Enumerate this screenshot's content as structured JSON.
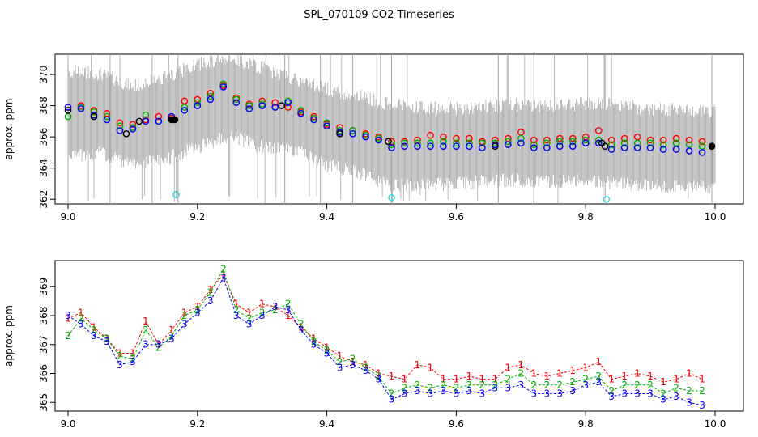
{
  "title": "SPL_070109  CO2 Timeseries",
  "colors": {
    "raw": "#a8a8a8",
    "level1": "#ff0000",
    "level2": "#00b000",
    "level3": "#0000ff",
    "black": "#000000",
    "cyan": "#33d6e0"
  },
  "chart_data": [
    {
      "type": "scatter",
      "xlabel": "",
      "ylabel": "approx. ppm",
      "xlim": [
        9.0,
        10.0
      ],
      "ylim": [
        361.7,
        371.3
      ],
      "x_ticks": [
        "9.0",
        "9.2",
        "9.4",
        "9.6",
        "9.8",
        "10.0"
      ],
      "y_ticks": [
        "362",
        "364",
        "366",
        "368",
        "370"
      ],
      "raw_band": {
        "name": "raw samples",
        "x": [
          9.0,
          9.05,
          9.1,
          9.15,
          9.2,
          9.25,
          9.3,
          9.35,
          9.4,
          9.45,
          9.5,
          9.55,
          9.6,
          9.65,
          9.7,
          9.75,
          9.8,
          9.85,
          9.9,
          9.95,
          10.0
        ],
        "low": [
          365.2,
          365.4,
          364.6,
          365.0,
          365.8,
          366.5,
          365.8,
          365.6,
          364.6,
          364.2,
          363.3,
          363.4,
          363.4,
          363.6,
          363.7,
          363.6,
          363.7,
          363.4,
          363.3,
          363.2,
          363.3
        ],
        "high": [
          369.8,
          369.6,
          368.8,
          369.4,
          370.2,
          370.6,
          370.0,
          369.2,
          368.6,
          368.2,
          367.6,
          367.4,
          367.4,
          367.5,
          367.6,
          367.5,
          367.7,
          367.6,
          367.3,
          367.3,
          367.2
        ]
      },
      "series": [
        {
          "name": "1",
          "color": "#ff0000",
          "x": [
            9.0,
            9.02,
            9.04,
            9.06,
            9.08,
            9.1,
            9.12,
            9.14,
            9.16,
            9.18,
            9.2,
            9.22,
            9.24,
            9.26,
            9.28,
            9.3,
            9.32,
            9.34,
            9.36,
            9.38,
            9.4,
            9.42,
            9.44,
            9.46,
            9.48,
            9.5,
            9.52,
            9.54,
            9.56,
            9.58,
            9.6,
            9.62,
            9.64,
            9.66,
            9.68,
            9.7,
            9.72,
            9.74,
            9.76,
            9.78,
            9.8,
            9.82,
            9.84,
            9.86,
            9.88,
            9.9,
            9.92,
            9.94,
            9.96,
            9.98
          ],
          "y": [
            367.9,
            368.0,
            367.7,
            367.5,
            366.9,
            366.8,
            367.1,
            367.3,
            367.2,
            368.3,
            368.4,
            368.8,
            369.3,
            368.5,
            368.1,
            368.3,
            368.2,
            367.9,
            367.6,
            367.3,
            366.8,
            366.6,
            366.4,
            366.2,
            366.0,
            365.7,
            365.7,
            365.8,
            366.1,
            366.0,
            365.9,
            365.9,
            365.7,
            365.8,
            365.9,
            366.3,
            365.8,
            365.8,
            365.9,
            365.9,
            366.0,
            366.4,
            365.8,
            365.9,
            366.0,
            365.8,
            365.8,
            365.9,
            365.8,
            365.7
          ]
        },
        {
          "name": "2",
          "color": "#00b000",
          "x": [
            9.0,
            9.02,
            9.04,
            9.06,
            9.08,
            9.1,
            9.12,
            9.14,
            9.16,
            9.18,
            9.2,
            9.22,
            9.24,
            9.26,
            9.28,
            9.3,
            9.32,
            9.34,
            9.36,
            9.38,
            9.4,
            9.42,
            9.44,
            9.46,
            9.48,
            9.5,
            9.52,
            9.54,
            9.56,
            9.58,
            9.6,
            9.62,
            9.64,
            9.66,
            9.68,
            9.7,
            9.72,
            9.74,
            9.76,
            9.78,
            9.8,
            9.82,
            9.84,
            9.86,
            9.88,
            9.9,
            9.92,
            9.94,
            9.96,
            9.98
          ],
          "y": [
            367.3,
            367.9,
            367.6,
            367.3,
            366.7,
            366.6,
            367.4,
            367.0,
            367.3,
            367.9,
            368.2,
            368.6,
            369.4,
            368.4,
            368.0,
            368.1,
            367.9,
            368.3,
            367.7,
            367.2,
            366.9,
            366.4,
            366.4,
            366.1,
            365.9,
            365.5,
            365.6,
            365.6,
            365.6,
            365.7,
            365.6,
            365.6,
            365.6,
            365.6,
            365.7,
            365.9,
            365.5,
            365.6,
            365.7,
            365.7,
            365.8,
            365.8,
            365.5,
            365.6,
            365.6,
            365.6,
            365.5,
            365.6,
            365.5,
            365.4
          ]
        },
        {
          "name": "3",
          "color": "#0000ff",
          "x": [
            9.0,
            9.02,
            9.04,
            9.06,
            9.08,
            9.1,
            9.12,
            9.14,
            9.16,
            9.18,
            9.2,
            9.22,
            9.24,
            9.26,
            9.28,
            9.3,
            9.32,
            9.34,
            9.36,
            9.38,
            9.4,
            9.42,
            9.44,
            9.46,
            9.48,
            9.5,
            9.52,
            9.54,
            9.56,
            9.58,
            9.6,
            9.62,
            9.64,
            9.66,
            9.68,
            9.7,
            9.72,
            9.74,
            9.76,
            9.78,
            9.8,
            9.82,
            9.84,
            9.86,
            9.88,
            9.9,
            9.92,
            9.94,
            9.96,
            9.98
          ],
          "y": [
            367.9,
            367.8,
            367.4,
            367.1,
            366.4,
            366.5,
            367.0,
            367.0,
            367.3,
            367.7,
            368.0,
            368.4,
            369.2,
            368.2,
            367.8,
            368.0,
            367.9,
            368.2,
            367.5,
            367.1,
            366.7,
            366.3,
            366.2,
            366.0,
            365.8,
            365.3,
            365.4,
            365.4,
            365.4,
            365.4,
            365.4,
            365.4,
            365.3,
            365.5,
            365.5,
            365.6,
            365.3,
            365.3,
            365.4,
            365.4,
            365.6,
            365.6,
            365.2,
            365.3,
            365.3,
            365.3,
            365.2,
            365.2,
            365.1,
            365.0
          ]
        },
        {
          "name": "black",
          "color": "#000000",
          "x": [
            9.0,
            9.04,
            9.09,
            9.11,
            9.16,
            9.165,
            9.33,
            9.42,
            9.495,
            9.66,
            9.825,
            9.83,
            9.995
          ],
          "y": [
            367.7,
            367.3,
            366.2,
            367.0,
            367.1,
            367.1,
            368.0,
            366.2,
            365.7,
            365.4,
            365.6,
            365.4,
            365.4
          ]
        },
        {
          "name": "cyan",
          "color": "#33d6e0",
          "x": [
            9.167,
            9.5,
            9.832
          ],
          "y": [
            362.3,
            362.1,
            362.0
          ]
        }
      ]
    },
    {
      "type": "scatter",
      "xlabel": "",
      "ylabel": "approx. ppm",
      "xlim": [
        9.0,
        10.0
      ],
      "ylim": [
        364.7,
        369.9
      ],
      "x_ticks": [
        "9.0",
        "9.2",
        "9.4",
        "9.6",
        "9.8",
        "10.0"
      ],
      "y_ticks": [
        "365",
        "366",
        "367",
        "368",
        "369"
      ],
      "series": [
        {
          "name": "1",
          "color": "#ff0000",
          "x": [
            9.0,
            9.02,
            9.04,
            9.06,
            9.08,
            9.1,
            9.12,
            9.14,
            9.16,
            9.18,
            9.2,
            9.22,
            9.24,
            9.26,
            9.28,
            9.3,
            9.32,
            9.34,
            9.36,
            9.38,
            9.4,
            9.42,
            9.44,
            9.46,
            9.48,
            9.5,
            9.52,
            9.54,
            9.56,
            9.58,
            9.6,
            9.62,
            9.64,
            9.66,
            9.68,
            9.7,
            9.72,
            9.74,
            9.76,
            9.78,
            9.8,
            9.82,
            9.84,
            9.86,
            9.88,
            9.9,
            9.92,
            9.94,
            9.96,
            9.98
          ],
          "y": [
            367.9,
            368.1,
            367.6,
            367.2,
            366.7,
            366.7,
            367.8,
            367.0,
            367.5,
            368.1,
            368.3,
            368.9,
            369.4,
            368.4,
            368.1,
            368.4,
            368.3,
            368.0,
            367.6,
            367.2,
            366.9,
            366.6,
            366.4,
            366.3,
            366.0,
            365.9,
            365.8,
            366.3,
            366.2,
            365.8,
            365.8,
            365.9,
            365.8,
            365.8,
            366.2,
            366.3,
            366.0,
            365.9,
            366.0,
            366.1,
            366.2,
            366.4,
            365.8,
            365.9,
            366.0,
            365.9,
            365.7,
            365.8,
            366.0,
            365.8
          ]
        },
        {
          "name": "2",
          "color": "#00b000",
          "x": [
            9.0,
            9.02,
            9.04,
            9.06,
            9.08,
            9.1,
            9.12,
            9.14,
            9.16,
            9.18,
            9.2,
            9.22,
            9.24,
            9.26,
            9.28,
            9.3,
            9.32,
            9.34,
            9.36,
            9.38,
            9.4,
            9.42,
            9.44,
            9.46,
            9.48,
            9.5,
            9.52,
            9.54,
            9.56,
            9.58,
            9.6,
            9.62,
            9.64,
            9.66,
            9.68,
            9.7,
            9.72,
            9.74,
            9.76,
            9.78,
            9.8,
            9.82,
            9.84,
            9.86,
            9.88,
            9.9,
            9.92,
            9.94,
            9.96,
            9.98
          ],
          "y": [
            367.3,
            367.9,
            367.5,
            367.2,
            366.6,
            366.5,
            367.5,
            366.9,
            367.3,
            368.0,
            368.2,
            368.8,
            369.6,
            368.2,
            367.9,
            368.1,
            368.2,
            368.4,
            367.7,
            367.1,
            366.8,
            366.4,
            366.5,
            366.2,
            365.9,
            365.3,
            365.5,
            365.6,
            365.5,
            365.6,
            365.5,
            365.6,
            365.6,
            365.6,
            365.8,
            366.0,
            365.6,
            365.6,
            365.6,
            365.7,
            365.8,
            365.9,
            365.4,
            365.6,
            365.6,
            365.6,
            365.3,
            365.5,
            365.4,
            365.4
          ]
        },
        {
          "name": "3",
          "color": "#0000ff",
          "x": [
            9.0,
            9.02,
            9.04,
            9.06,
            9.08,
            9.1,
            9.12,
            9.14,
            9.16,
            9.18,
            9.2,
            9.22,
            9.24,
            9.26,
            9.28,
            9.3,
            9.32,
            9.34,
            9.36,
            9.38,
            9.4,
            9.42,
            9.44,
            9.46,
            9.48,
            9.5,
            9.52,
            9.54,
            9.56,
            9.58,
            9.6,
            9.62,
            9.64,
            9.66,
            9.68,
            9.7,
            9.72,
            9.74,
            9.76,
            9.78,
            9.8,
            9.82,
            9.84,
            9.86,
            9.88,
            9.9,
            9.92,
            9.94,
            9.96,
            9.98
          ],
          "y": [
            368.0,
            367.7,
            367.3,
            367.1,
            366.3,
            366.4,
            367.0,
            367.0,
            367.2,
            367.7,
            368.1,
            368.5,
            369.3,
            368.0,
            367.7,
            368.0,
            368.3,
            368.2,
            367.5,
            367.0,
            366.7,
            366.2,
            366.3,
            366.1,
            365.8,
            365.1,
            365.3,
            365.4,
            365.3,
            365.4,
            365.3,
            365.4,
            365.3,
            365.5,
            365.5,
            365.6,
            365.3,
            365.3,
            365.3,
            365.4,
            365.6,
            365.7,
            365.2,
            365.3,
            365.3,
            365.3,
            365.1,
            365.2,
            365.0,
            364.9
          ]
        }
      ]
    }
  ]
}
